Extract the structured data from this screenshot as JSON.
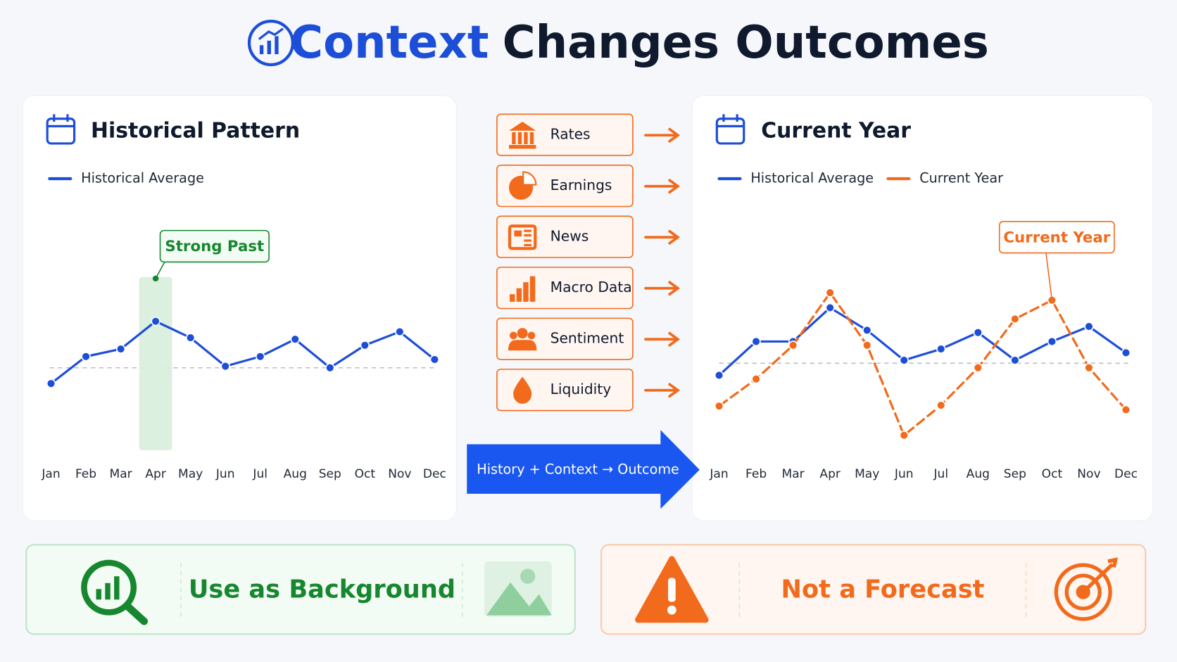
{
  "title": {
    "accent": "Context",
    "rest": "Changes Outcomes"
  },
  "chart_data": [
    {
      "type": "line",
      "title": "Historical Pattern",
      "categories": [
        "Jan",
        "Feb",
        "Mar",
        "Apr",
        "May",
        "Jun",
        "Jul",
        "Aug",
        "Sep",
        "Oct",
        "Nov",
        "Dec"
      ],
      "series": [
        {
          "name": "Historical Average",
          "color": "#1d4ed8",
          "values": [
            89,
            125,
            135,
            172,
            150,
            112,
            125,
            148,
            110,
            140,
            158,
            121
          ]
        }
      ],
      "ylim": [
        0,
        300
      ],
      "reference_line": 110,
      "annotation": {
        "text": "Strong Past",
        "category": "Apr"
      }
    },
    {
      "type": "line",
      "title": "Current Year",
      "categories": [
        "Jan",
        "Feb",
        "Mar",
        "Apr",
        "May",
        "Jun",
        "Jul",
        "Aug",
        "Sep",
        "Oct",
        "Nov",
        "Dec"
      ],
      "series": [
        {
          "name": "Historical Average",
          "color": "#1d4ed8",
          "values": [
            100,
            145,
            145,
            190,
            160,
            120,
            135,
            157,
            120,
            145,
            165,
            130
          ]
        },
        {
          "name": "Current Year",
          "color": "#f26a1b",
          "values": [
            59,
            95,
            140,
            210,
            140,
            20,
            60,
            110,
            175,
            200,
            110,
            54
          ]
        }
      ],
      "ylim": [
        0,
        300
      ],
      "reference_line": 116,
      "annotation": {
        "text": "Current Year",
        "category": "Oct"
      }
    }
  ],
  "factors": [
    "Rates",
    "Earnings",
    "News",
    "Macro Data",
    "Sentiment",
    "Liquidity"
  ],
  "flow_label": "History + Context → Outcome",
  "footer": {
    "left": "Use as Background",
    "right": "Not a Forecast"
  }
}
